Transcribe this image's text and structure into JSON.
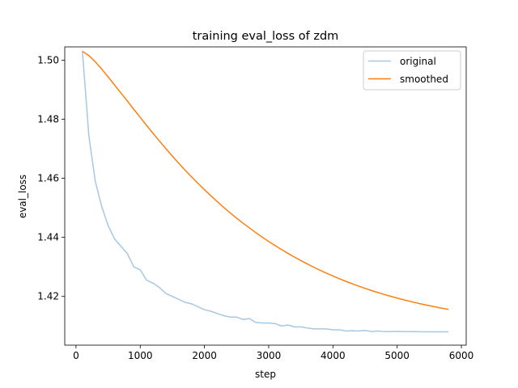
{
  "chart_data": {
    "type": "line",
    "title": "training eval_loss of zdm",
    "xlabel": "step",
    "ylabel": "eval_loss",
    "xlim": [
      -175,
      6075
    ],
    "ylim": [
      1.4035,
      1.5045
    ],
    "xticks": [
      0,
      1000,
      2000,
      3000,
      4000,
      5000,
      6000
    ],
    "yticks": [
      1.42,
      1.44,
      1.46,
      1.48,
      1.5
    ],
    "ytick_labels": [
      "1.42",
      "1.44",
      "1.46",
      "1.48",
      "1.50"
    ],
    "grid": false,
    "legend_position": "top-right",
    "series": [
      {
        "name": "original",
        "color": "#a6c8e3",
        "x": [
          100,
          200,
          300,
          400,
          500,
          600,
          700,
          800,
          900,
          1000,
          1100,
          1200,
          1300,
          1400,
          1500,
          1600,
          1700,
          1800,
          1900,
          2000,
          2100,
          2200,
          2300,
          2400,
          2500,
          2600,
          2700,
          2800,
          2900,
          3000,
          3100,
          3200,
          3300,
          3400,
          3500,
          3600,
          3700,
          3800,
          3900,
          4000,
          4100,
          4200,
          4300,
          4400,
          4500,
          4600,
          4700,
          4800,
          4900,
          5000,
          5100,
          5200,
          5300,
          5400,
          5500,
          5600,
          5700,
          5800
        ],
        "y": [
          1.503,
          1.4745,
          1.459,
          1.4505,
          1.444,
          1.4395,
          1.437,
          1.4345,
          1.43,
          1.429,
          1.4255,
          1.4245,
          1.423,
          1.421,
          1.42,
          1.419,
          1.418,
          1.4175,
          1.4165,
          1.4155,
          1.415,
          1.4142,
          1.4135,
          1.413,
          1.413,
          1.4122,
          1.4125,
          1.4112,
          1.411,
          1.411,
          1.4108,
          1.41,
          1.4103,
          1.4097,
          1.4097,
          1.4093,
          1.409,
          1.409,
          1.409,
          1.4087,
          1.4087,
          1.4083,
          1.4084,
          1.4083,
          1.4085,
          1.4081,
          1.4083,
          1.4081,
          1.4081,
          1.4082,
          1.4081,
          1.4081,
          1.4081,
          1.408,
          1.408,
          1.408,
          1.408,
          1.408
        ]
      },
      {
        "name": "smoothed",
        "color": "#ff7f0e",
        "smoothing": 0.95
      }
    ]
  }
}
